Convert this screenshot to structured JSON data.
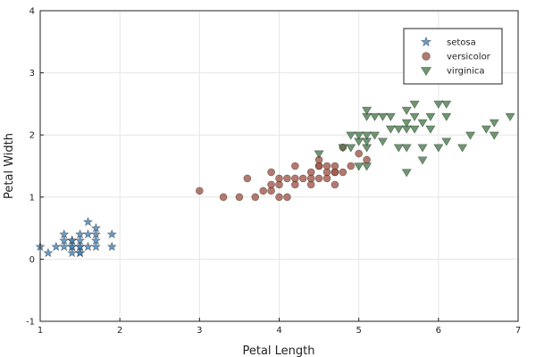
{
  "chart_data": {
    "type": "scatter",
    "title": "",
    "xlabel": "Petal Length",
    "ylabel": "Petal Width",
    "xlim": [
      1,
      7
    ],
    "ylim": [
      -1,
      4
    ],
    "xticks": [
      "1",
      "2",
      "3",
      "4",
      "5",
      "6",
      "7"
    ],
    "yticks": [
      "-1",
      "0",
      "1",
      "2",
      "3",
      "4"
    ],
    "grid": true,
    "legend_position": "top-right",
    "series": [
      {
        "name": "setosa",
        "marker": "star",
        "color": "#4682b4",
        "points": [
          [
            1.0,
            0.2
          ],
          [
            1.1,
            0.1
          ],
          [
            1.2,
            0.2
          ],
          [
            1.3,
            0.2
          ],
          [
            1.3,
            0.3
          ],
          [
            1.3,
            0.4
          ],
          [
            1.4,
            0.1
          ],
          [
            1.4,
            0.2
          ],
          [
            1.4,
            0.3
          ],
          [
            1.5,
            0.1
          ],
          [
            1.5,
            0.2
          ],
          [
            1.5,
            0.3
          ],
          [
            1.5,
            0.4
          ],
          [
            1.6,
            0.2
          ],
          [
            1.6,
            0.4
          ],
          [
            1.6,
            0.6
          ],
          [
            1.7,
            0.2
          ],
          [
            1.7,
            0.3
          ],
          [
            1.7,
            0.4
          ],
          [
            1.7,
            0.5
          ],
          [
            1.9,
            0.2
          ],
          [
            1.9,
            0.4
          ],
          [
            1.4,
            0.2
          ],
          [
            1.5,
            0.2
          ],
          [
            1.4,
            0.3
          ],
          [
            1.5,
            0.1
          ]
        ]
      },
      {
        "name": "versicolor",
        "marker": "circle",
        "color": "#a0584a",
        "points": [
          [
            3.0,
            1.1
          ],
          [
            3.3,
            1.0
          ],
          [
            3.5,
            1.0
          ],
          [
            3.6,
            1.3
          ],
          [
            3.7,
            1.0
          ],
          [
            3.8,
            1.1
          ],
          [
            3.9,
            1.1
          ],
          [
            3.9,
            1.2
          ],
          [
            3.9,
            1.4
          ],
          [
            4.0,
            1.0
          ],
          [
            4.0,
            1.2
          ],
          [
            4.0,
            1.3
          ],
          [
            4.1,
            1.0
          ],
          [
            4.1,
            1.3
          ],
          [
            4.2,
            1.2
          ],
          [
            4.2,
            1.3
          ],
          [
            4.2,
            1.5
          ],
          [
            4.3,
            1.3
          ],
          [
            4.4,
            1.2
          ],
          [
            4.4,
            1.3
          ],
          [
            4.4,
            1.4
          ],
          [
            4.5,
            1.3
          ],
          [
            4.5,
            1.5
          ],
          [
            4.5,
            1.6
          ],
          [
            4.6,
            1.3
          ],
          [
            4.6,
            1.4
          ],
          [
            4.6,
            1.5
          ],
          [
            4.7,
            1.2
          ],
          [
            4.7,
            1.4
          ],
          [
            4.7,
            1.5
          ],
          [
            4.8,
            1.4
          ],
          [
            4.8,
            1.8
          ],
          [
            4.9,
            1.5
          ],
          [
            5.0,
            1.7
          ],
          [
            5.1,
            1.6
          ],
          [
            4.5,
            1.5
          ],
          [
            4.7,
            1.4
          ]
        ]
      },
      {
        "name": "virginica",
        "marker": "triangle-down",
        "color": "#4a7c4e",
        "points": [
          [
            4.5,
            1.7
          ],
          [
            4.8,
            1.8
          ],
          [
            4.9,
            1.8
          ],
          [
            4.9,
            2.0
          ],
          [
            5.0,
            1.5
          ],
          [
            5.0,
            1.9
          ],
          [
            5.0,
            2.0
          ],
          [
            5.1,
            1.5
          ],
          [
            5.1,
            1.8
          ],
          [
            5.1,
            1.9
          ],
          [
            5.1,
            2.0
          ],
          [
            5.1,
            2.3
          ],
          [
            5.1,
            2.4
          ],
          [
            5.2,
            2.0
          ],
          [
            5.2,
            2.3
          ],
          [
            5.3,
            1.9
          ],
          [
            5.3,
            2.3
          ],
          [
            5.4,
            2.1
          ],
          [
            5.4,
            2.3
          ],
          [
            5.5,
            1.8
          ],
          [
            5.5,
            2.1
          ],
          [
            5.6,
            1.4
          ],
          [
            5.6,
            1.8
          ],
          [
            5.6,
            2.1
          ],
          [
            5.6,
            2.2
          ],
          [
            5.6,
            2.4
          ],
          [
            5.7,
            2.1
          ],
          [
            5.7,
            2.3
          ],
          [
            5.7,
            2.5
          ],
          [
            5.8,
            1.6
          ],
          [
            5.8,
            1.8
          ],
          [
            5.8,
            2.2
          ],
          [
            5.9,
            2.1
          ],
          [
            5.9,
            2.3
          ],
          [
            6.0,
            1.8
          ],
          [
            6.0,
            2.5
          ],
          [
            6.1,
            1.9
          ],
          [
            6.1,
            2.3
          ],
          [
            6.1,
            2.5
          ],
          [
            6.3,
            1.8
          ],
          [
            6.4,
            2.0
          ],
          [
            6.6,
            2.1
          ],
          [
            6.7,
            2.0
          ],
          [
            6.7,
            2.2
          ],
          [
            6.9,
            2.3
          ]
        ]
      }
    ]
  }
}
